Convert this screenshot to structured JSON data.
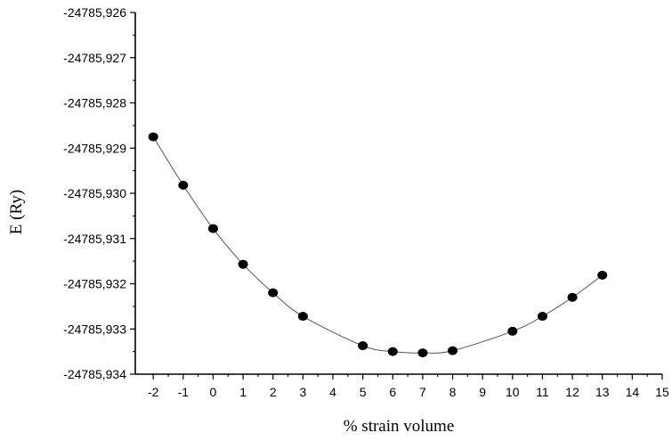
{
  "chart_data": {
    "type": "scatter",
    "xlabel": "% strain volume",
    "ylabel": "E (Ry)",
    "xlim": [
      -2.6,
      15
    ],
    "ylim": [
      -24785.934,
      -24785.926
    ],
    "x_ticks": [
      -2,
      -1,
      0,
      1,
      2,
      3,
      4,
      5,
      6,
      7,
      8,
      9,
      10,
      11,
      12,
      13,
      14,
      15
    ],
    "x_tick_labels": [
      "-2",
      "-1",
      "0",
      "1",
      "2",
      "3",
      "4",
      "5",
      "6",
      "7",
      "8",
      "9",
      "10",
      "11",
      "12",
      "13",
      "14",
      "15"
    ],
    "y_ticks": [
      -24785.926,
      -24785.927,
      -24785.928,
      -24785.929,
      -24785.93,
      -24785.931,
      -24785.932,
      -24785.933,
      -24785.934
    ],
    "y_tick_labels": [
      "-24785,926",
      "-24785,927",
      "-24785,928",
      "-24785,929",
      "-24785,930",
      "-24785,931",
      "-24785,932",
      "-24785,933",
      "-24785,934"
    ],
    "grid": false,
    "series": [
      {
        "x": [
          -2,
          -1,
          0,
          1,
          2,
          3,
          5,
          6,
          7,
          8,
          10,
          11,
          12,
          13
        ],
        "y": [
          -24785.92875,
          -24785.92982,
          -24785.93078,
          -24785.93157,
          -24785.9322,
          -24785.93272,
          -24785.93337,
          -24785.9335,
          -24785.93353,
          -24785.93348,
          -24785.93305,
          -24785.93272,
          -24785.9323,
          -24785.93181
        ],
        "marker_color": "#000000",
        "line_color": "#555555",
        "fit_curve": true
      }
    ]
  }
}
